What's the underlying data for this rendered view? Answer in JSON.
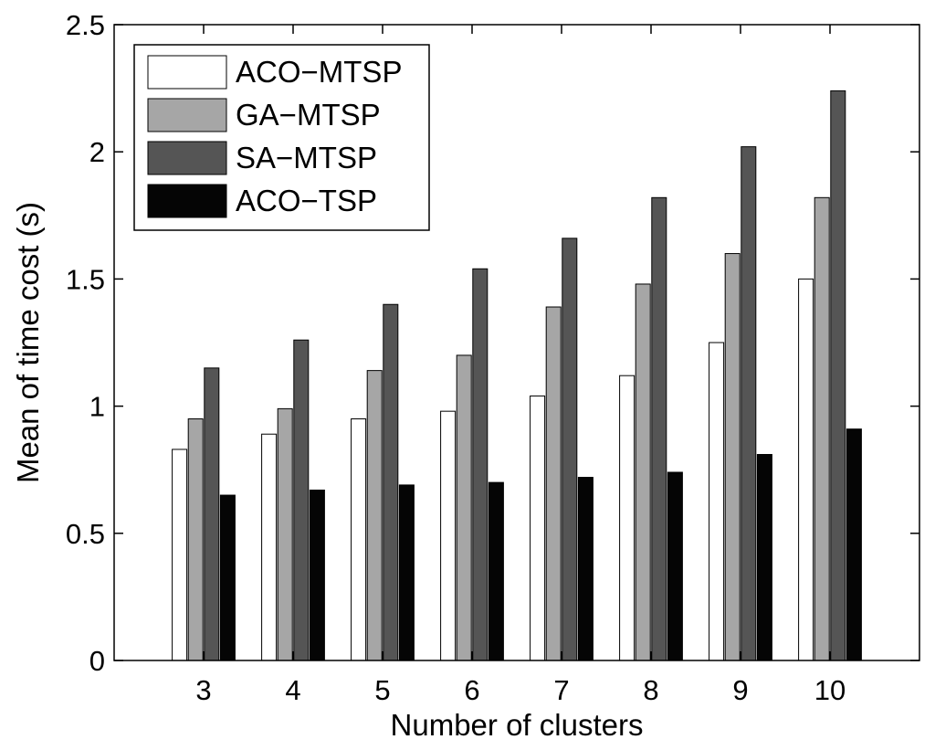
{
  "chart_data": {
    "type": "bar",
    "title": "",
    "xlabel": "Number of clusters",
    "ylabel": "Mean of time cost (s)",
    "categories": [
      "3",
      "4",
      "5",
      "6",
      "7",
      "8",
      "9",
      "10"
    ],
    "ylim": [
      0,
      2.5
    ],
    "yticks": [
      "0",
      "0.5",
      "1",
      "1.5",
      "2",
      "2.5"
    ],
    "grid": false,
    "legend_position": "top-left",
    "series": [
      {
        "name": "ACO−MTSP",
        "color": "#ffffff",
        "values": [
          0.83,
          0.89,
          0.95,
          0.98,
          1.04,
          1.12,
          1.25,
          1.5
        ]
      },
      {
        "name": "GA−MTSP",
        "color": "#a6a6a6",
        "values": [
          0.95,
          0.99,
          1.14,
          1.2,
          1.39,
          1.48,
          1.6,
          1.82
        ]
      },
      {
        "name": "SA−MTSP",
        "color": "#555555",
        "values": [
          1.15,
          1.26,
          1.4,
          1.54,
          1.66,
          1.82,
          2.02,
          2.24
        ]
      },
      {
        "name": "ACO−TSP",
        "color": "#050505",
        "values": [
          0.65,
          0.67,
          0.69,
          0.7,
          0.72,
          0.74,
          0.81,
          0.91
        ]
      }
    ]
  }
}
